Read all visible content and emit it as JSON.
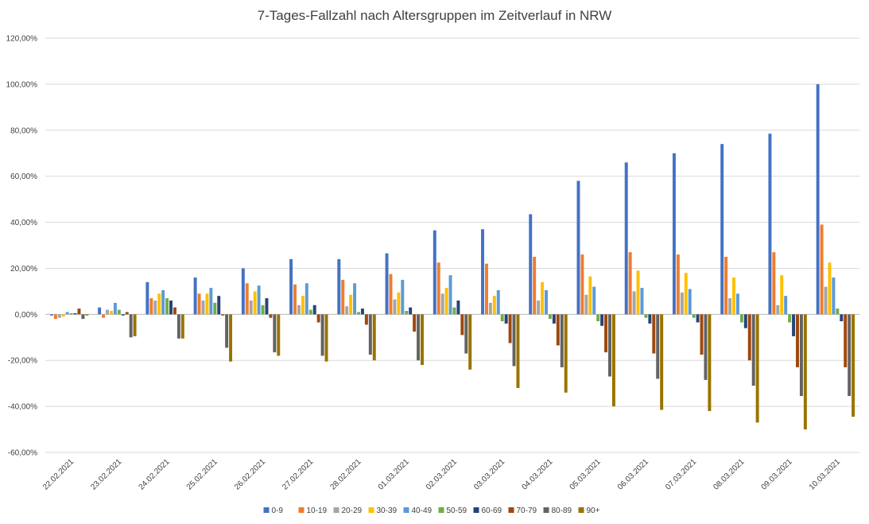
{
  "chart_data": {
    "type": "bar",
    "title": "7-Tages-Fallzahl nach Altersgruppen im Zeitverlauf in NRW",
    "xlabel": "",
    "ylabel": "",
    "ylim": [
      -60,
      120
    ],
    "y_ticks": [
      -60,
      -40,
      -20,
      0,
      20,
      40,
      60,
      80,
      100,
      120
    ],
    "y_tick_labels": [
      "-60,00%",
      "-40,00%",
      "-20,00%",
      "0,00%",
      "20,00%",
      "40,00%",
      "60,00%",
      "80,00%",
      "100,00%",
      "120,00%"
    ],
    "grid": true,
    "legend_position": "bottom",
    "categories": [
      "22.02.2021",
      "23.02.2021",
      "24.02.2021",
      "25.02.2021",
      "26.02.2021",
      "27.02.2021",
      "28.02.2021",
      "01.03.2021",
      "02.03.2021",
      "03.03.2021",
      "04.03.2021",
      "05.03.2021",
      "06.03.2021",
      "07.03.2021",
      "08.03.2021",
      "09.03.2021",
      "10.03.2021"
    ],
    "series": [
      {
        "name": "0-9",
        "color": "#4472C4",
        "values": [
          -0.5,
          3,
          14,
          16,
          20,
          24,
          24,
          26.5,
          36.5,
          37,
          43.5,
          58,
          66,
          70,
          74,
          78.5,
          100
        ]
      },
      {
        "name": "10-19",
        "color": "#ED7D31",
        "values": [
          -2,
          -1.5,
          7,
          9,
          13.5,
          13,
          15,
          17.5,
          22.5,
          22,
          25,
          26,
          27,
          26,
          25,
          27,
          39
        ]
      },
      {
        "name": "20-29",
        "color": "#A5A5A5",
        "values": [
          -1.5,
          2,
          6,
          6,
          6,
          4,
          3.5,
          6.5,
          9,
          5,
          6,
          8.5,
          10,
          9.5,
          7,
          4,
          12
        ]
      },
      {
        "name": "30-39",
        "color": "#FFC000",
        "values": [
          -1,
          1.5,
          9,
          9,
          10,
          8,
          8.5,
          9.5,
          11.5,
          8,
          14,
          16.5,
          19,
          18,
          16,
          17,
          22.5
        ]
      },
      {
        "name": "40-49",
        "color": "#5B9BD5",
        "values": [
          1,
          5,
          10.5,
          11.5,
          12.5,
          13.5,
          13.5,
          15,
          17,
          10.5,
          10.5,
          12,
          11.5,
          11,
          9,
          8,
          16
        ]
      },
      {
        "name": "50-59",
        "color": "#70AD47",
        "values": [
          0.5,
          2,
          7,
          5,
          4,
          2,
          1,
          1.5,
          3,
          -3,
          -2,
          -3,
          -1.5,
          -1.5,
          -3.5,
          -3.5,
          2.5
        ]
      },
      {
        "name": "60-69",
        "color": "#264478",
        "values": [
          0.5,
          -0.5,
          6,
          8,
          7,
          4,
          2.5,
          3,
          6,
          -4,
          -4,
          -5,
          -4,
          -3.5,
          -6,
          -9.5,
          -3
        ]
      },
      {
        "name": "70-79",
        "color": "#9E480E",
        "values": [
          2.5,
          1,
          3,
          -0.5,
          -1.5,
          -3.5,
          -4.5,
          -7.5,
          -9,
          -12.5,
          -13.5,
          -16.5,
          -17,
          -17.5,
          -20,
          -23,
          -23
        ]
      },
      {
        "name": "80-89",
        "color": "#636363",
        "values": [
          -2,
          -10,
          -10.5,
          -14.5,
          -16.5,
          -18,
          -17.5,
          -20,
          -17,
          -22.5,
          -23,
          -27,
          -28,
          -28.5,
          -31,
          -35.5,
          -35.5
        ]
      },
      {
        "name": "90+",
        "color": "#997300",
        "values": [
          -0.5,
          -9.5,
          -10.5,
          -20.5,
          -18,
          -20.5,
          -20,
          -22,
          -24,
          -32,
          -34,
          -40,
          -41.5,
          -42,
          -47,
          -50,
          -44.5
        ]
      }
    ]
  }
}
